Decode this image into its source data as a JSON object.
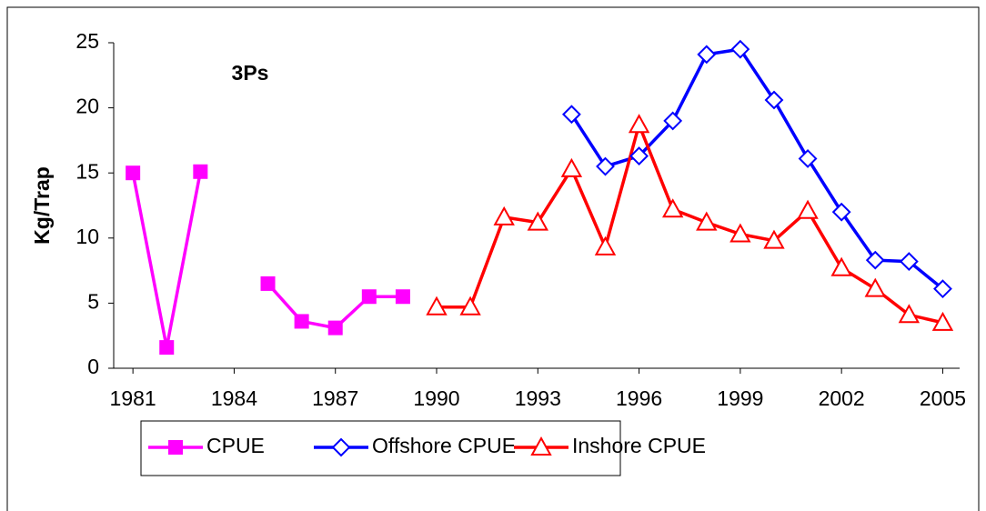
{
  "chart_data": {
    "type": "line",
    "annotation": "3Ps",
    "y_label": "Kg/Trap",
    "x": [
      1981,
      1982,
      1983,
      1984,
      1985,
      1986,
      1987,
      1988,
      1989,
      1990,
      1991,
      1992,
      1993,
      1994,
      1995,
      1996,
      1997,
      1998,
      1999,
      2000,
      2001,
      2002,
      2003,
      2004,
      2005
    ],
    "xlim": [
      1980.43,
      2005.5
    ],
    "xticks": [
      1981,
      1984,
      1987,
      1990,
      1993,
      1996,
      1999,
      2002,
      2005
    ],
    "ylim": [
      0,
      25
    ],
    "yticks": [
      0,
      5,
      10,
      15,
      20,
      25
    ],
    "grid": false,
    "legend": "bottom",
    "series": [
      {
        "name": "CPUE",
        "color": "#ff00ff",
        "marker": "square",
        "values": [
          15.0,
          1.6,
          15.1,
          null,
          6.5,
          3.6,
          3.1,
          5.5,
          5.5,
          null,
          null,
          null,
          null,
          null,
          null,
          null,
          null,
          null,
          null,
          null,
          null,
          null,
          null,
          null,
          null
        ]
      },
      {
        "name": "Offshore CPUE",
        "color": "#0000ff",
        "marker": "diamond",
        "values": [
          null,
          null,
          null,
          null,
          null,
          null,
          null,
          null,
          null,
          null,
          null,
          null,
          null,
          19.5,
          15.5,
          16.3,
          19.0,
          24.1,
          24.5,
          20.6,
          16.1,
          12.0,
          8.3,
          8.2,
          6.1
        ]
      },
      {
        "name": "Inshore CPUE",
        "color": "#ff0000",
        "marker": "triangle",
        "values": [
          null,
          null,
          null,
          null,
          null,
          null,
          null,
          null,
          null,
          4.7,
          4.7,
          11.6,
          11.2,
          15.3,
          9.3,
          18.7,
          12.2,
          11.2,
          10.3,
          9.8,
          12.1,
          7.7,
          6.1,
          4.1,
          3.5
        ]
      }
    ]
  }
}
